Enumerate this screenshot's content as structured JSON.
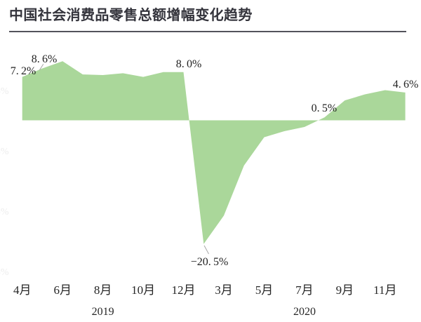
{
  "title": "中国社会消费品零售总额增幅变化趋势",
  "style": {
    "area_fill": "#aad79a",
    "label_color": "#222222",
    "title_color": "#34343c",
    "divider_color": "#53535b",
    "leader_line_color": "#a8a8a8",
    "faint_label_color": "#ececec",
    "axis_text_color": "#262626"
  },
  "chart_data": {
    "type": "area",
    "title": "中国社会消费品零售总额增幅变化趋势",
    "value_suffix": "%",
    "grid": "off",
    "legend": "none",
    "categories": [
      "2019年4月",
      "2019年5月",
      "2019年6月",
      "2019年7月",
      "2019年8月",
      "2019年9月",
      "2019年10月",
      "2019年11月",
      "2019年12月",
      "2020年1-2月",
      "2020年3月",
      "2020年4月",
      "2020年5月",
      "2020年6月",
      "2020年7月",
      "2020年8月",
      "2020年9月",
      "2020年10月",
      "2020年11月",
      "2020年12月"
    ],
    "values": [
      7.2,
      8.6,
      9.8,
      7.6,
      7.5,
      7.8,
      7.2,
      8.0,
      8.0,
      -20.5,
      -15.8,
      -7.5,
      -2.8,
      -1.8,
      -1.1,
      0.5,
      3.3,
      4.3,
      5.0,
      4.6
    ],
    "annotations": [
      {
        "category_index": 0,
        "text": "7.2%"
      },
      {
        "category_index": 1,
        "text": "8.6%",
        "leader": true
      },
      {
        "category_index": 8,
        "text": "8.0%"
      },
      {
        "category_index": 9,
        "text": "-20.5%",
        "leader": true
      },
      {
        "category_index": 15,
        "text": "0.5%"
      },
      {
        "category_index": 19,
        "text": "4.6%"
      }
    ],
    "x_axis": {
      "ticks": [
        {
          "index": 0,
          "label": "4月"
        },
        {
          "index": 2,
          "label": "6月"
        },
        {
          "index": 4,
          "label": "8月"
        },
        {
          "index": 6,
          "label": "10月"
        },
        {
          "index": 8,
          "label": "12月"
        },
        {
          "index": 10,
          "label": "3月"
        },
        {
          "index": 12,
          "label": "5月"
        },
        {
          "index": 14,
          "label": "7月"
        },
        {
          "index": 16,
          "label": "9月"
        },
        {
          "index": 18,
          "label": "11月"
        }
      ],
      "groups": [
        {
          "label": "2019",
          "from": 0,
          "to": 8
        },
        {
          "label": "2020",
          "from": 9,
          "to": 19
        }
      ]
    },
    "y_axis": {
      "range": [
        -25,
        15
      ],
      "major_unit": 10,
      "partial_labels": [
        {
          "label": "5%",
          "value": 5
        },
        {
          "label": "-5%",
          "value": -5
        },
        {
          "label": "-15%",
          "value": -15
        },
        {
          "label": "-25%",
          "value": -25
        }
      ]
    }
  }
}
